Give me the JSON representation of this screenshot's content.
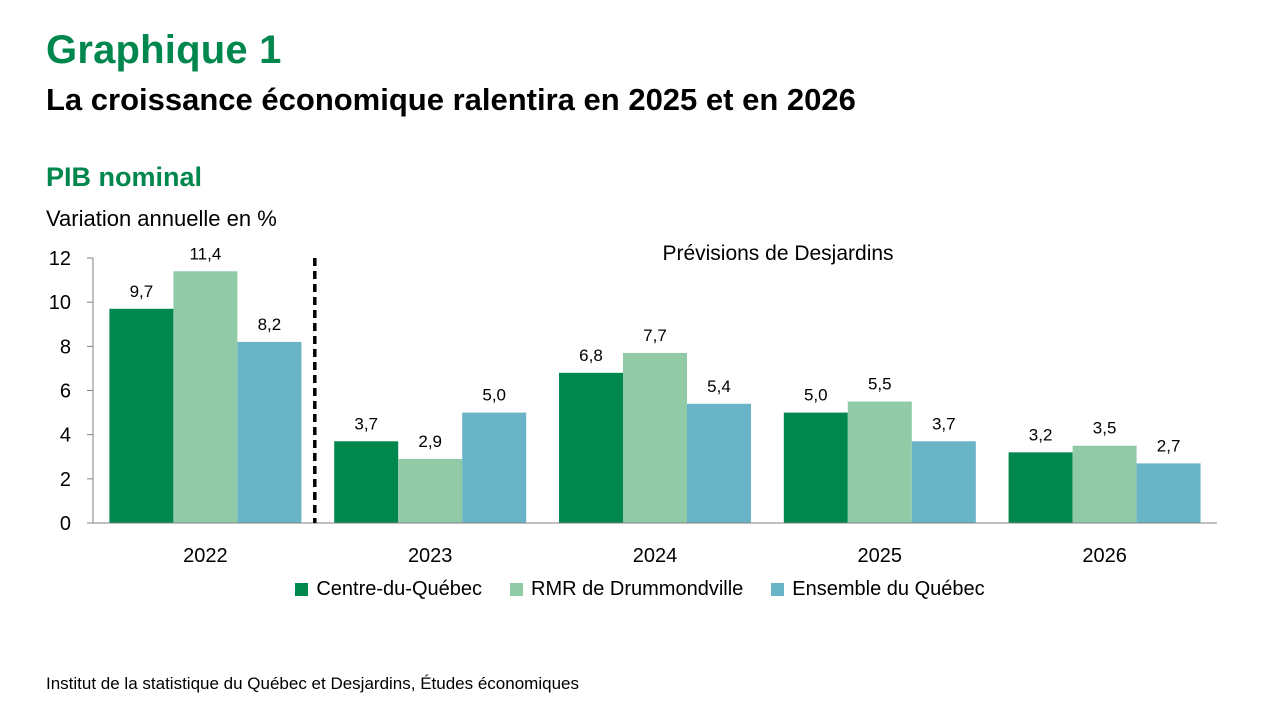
{
  "title": "Graphique 1",
  "subtitle": "La croissance économique ralentira en 2025 et en 2026",
  "section": "PIB nominal",
  "unit_label": "Variation annuelle en %",
  "forecast_label": "Prévisions de Desjardins",
  "source": "Institut de la statistique du Québec et Desjardins, Études économiques",
  "chart_data": {
    "type": "bar",
    "categories": [
      "2022",
      "2023",
      "2024",
      "2025",
      "2026"
    ],
    "ylim": [
      0,
      12
    ],
    "yticks": [
      0,
      2,
      4,
      6,
      8,
      10,
      12
    ],
    "grid": false,
    "legend_position": "bottom",
    "forecast_divider_after": "2022",
    "series": [
      {
        "name": "Centre-du-Québec",
        "color": "#00874d",
        "values": [
          9.7,
          3.7,
          6.8,
          5.0,
          3.2
        ],
        "labels": [
          "9,7",
          "3,7",
          "6,8",
          "5,0",
          "3,2"
        ]
      },
      {
        "name": "RMR de Drummondville",
        "color": "#90caa7",
        "values": [
          11.4,
          2.9,
          7.7,
          5.5,
          3.5
        ],
        "labels": [
          "11,4",
          "2,9",
          "7,7",
          "5,5",
          "3,5"
        ]
      },
      {
        "name": "Ensemble du Québec",
        "color": "#6ab4c7",
        "values": [
          8.2,
          5.0,
          5.4,
          3.7,
          2.7
        ],
        "labels": [
          "8,2",
          "5,0",
          "5,4",
          "3,7",
          "2,7"
        ]
      }
    ]
  }
}
